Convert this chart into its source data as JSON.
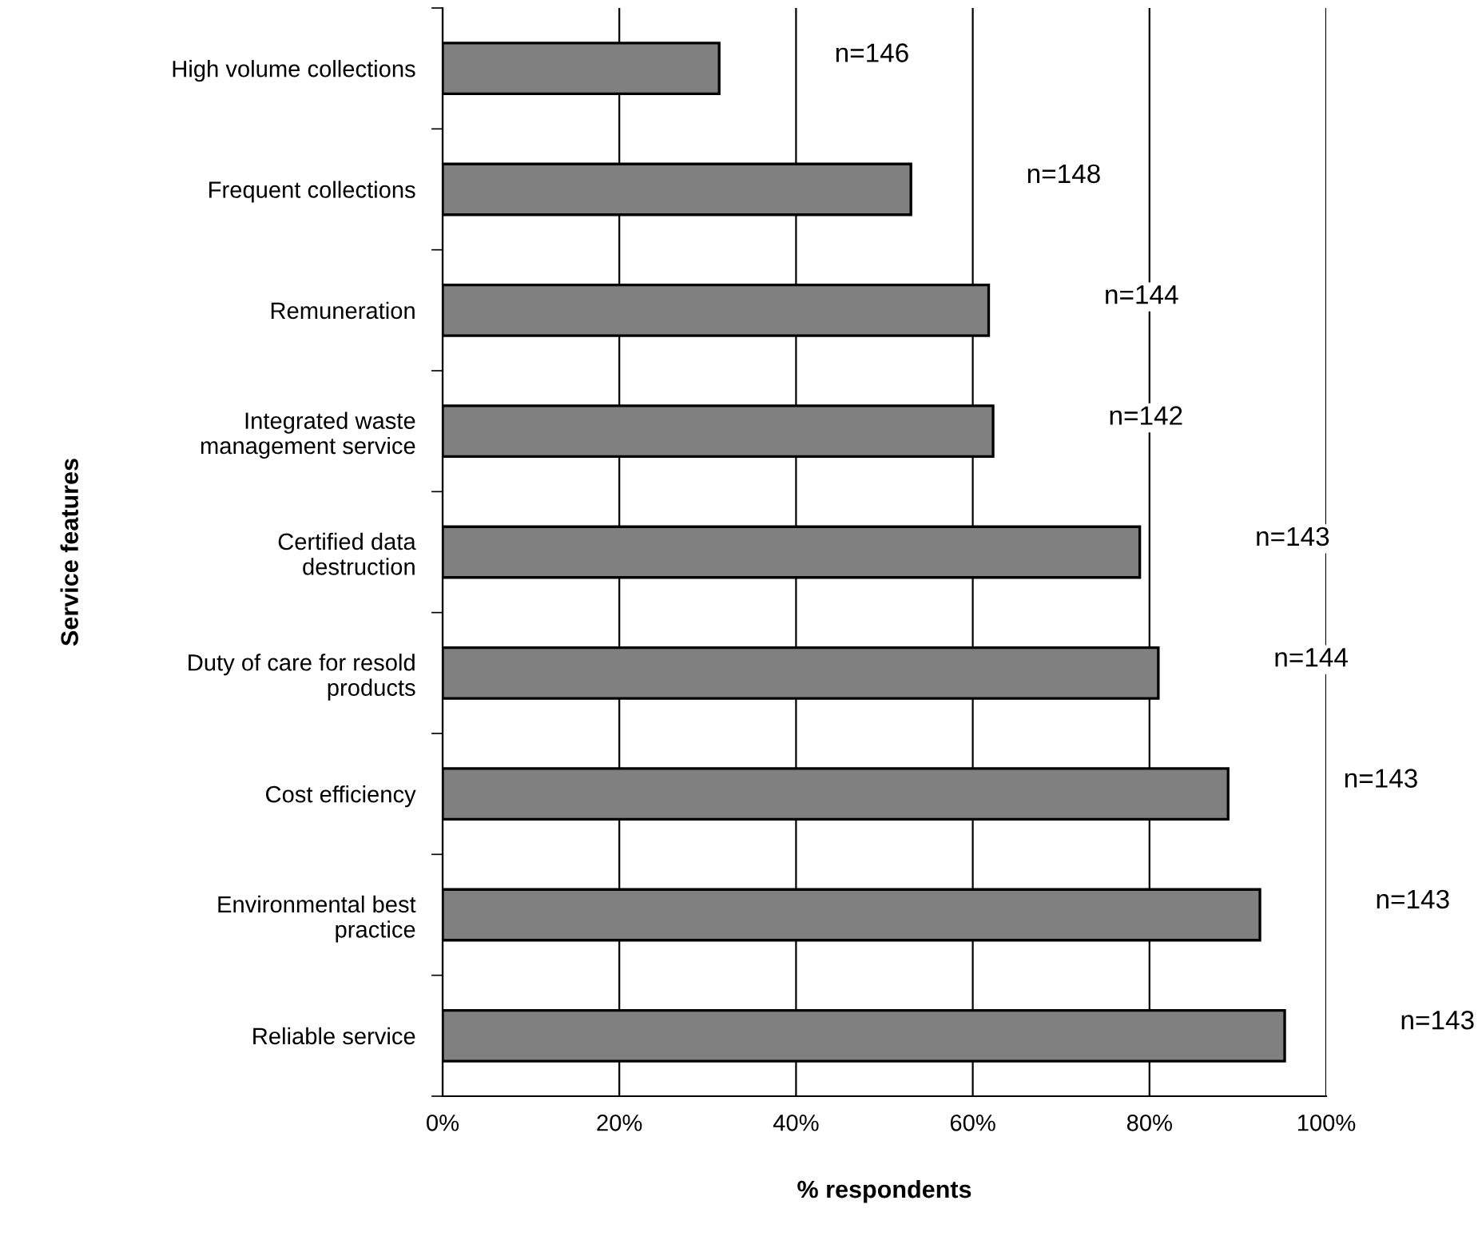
{
  "chart_data": {
    "type": "bar",
    "orientation": "horizontal",
    "xlabel": "% respondents",
    "ylabel": "Service features",
    "categories": [
      "High volume collections",
      "Frequent collections",
      "Remuneration",
      "Integrated waste\nmanagement service",
      "Certified data\ndestruction",
      "Duty of care for resold\nproducts",
      "Cost efficiency",
      "Environmental best\npractice",
      "Reliable service"
    ],
    "values": [
      31.3,
      53.0,
      61.8,
      62.3,
      78.9,
      81.0,
      88.9,
      92.5,
      95.3
    ],
    "color": "#808080",
    "xlim": [
      0,
      100
    ],
    "xticks": [
      {
        "value": 0,
        "label": "0%"
      },
      {
        "value": 20,
        "label": "20%"
      },
      {
        "value": 40,
        "label": "40%"
      },
      {
        "value": 60,
        "label": "60%"
      },
      {
        "value": 80,
        "label": "80%"
      },
      {
        "value": 100,
        "label": "100%"
      }
    ],
    "grid": "x",
    "annotations": [
      "n=146",
      "n=148",
      "n=144",
      "n=142",
      "n=143",
      "n=144",
      "n=143",
      "n=143",
      "n=143"
    ]
  }
}
